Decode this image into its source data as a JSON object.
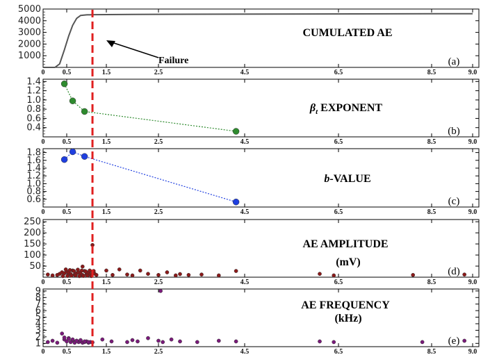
{
  "figure": {
    "failure_label": "Failure",
    "failure_x": 1.15,
    "failure_color": "#e02020"
  },
  "chart_data": [
    {
      "type": "line",
      "title": "CUMULATED AE",
      "panel_letter": "(a)",
      "xlim": [
        0,
        9.0
      ],
      "ylim": [
        0,
        5000
      ],
      "x_ticks": [
        "0",
        "0.5",
        "1.5",
        "2.5",
        "4.5",
        "6.5",
        "8.5",
        "9.0"
      ],
      "y_ticks": [
        "5000",
        "4000",
        "3000",
        "2000",
        "1000"
      ],
      "series": [
        {
          "color": "#555555",
          "x": [
            0,
            0.25,
            0.35,
            0.45,
            0.55,
            0.65,
            0.75,
            0.85,
            1.0,
            1.2,
            2.0,
            4.0,
            6.0,
            9.0
          ],
          "y": [
            0,
            0,
            300,
            1500,
            2700,
            3600,
            4200,
            4450,
            4500,
            4520,
            4540,
            4560,
            4580,
            4600
          ]
        }
      ]
    },
    {
      "type": "scatter",
      "title_symbol": "β",
      "title_subscript": "t",
      "title": "EXPONENT",
      "panel_letter": "(b)",
      "xlim": [
        0,
        9.0
      ],
      "ylim": [
        0.2,
        1.45
      ],
      "x_ticks": [
        "0",
        "0.5",
        "1.5",
        "2.5",
        "4.5",
        "6.5",
        "8.5",
        "9.0"
      ],
      "y_ticks": [
        "1.4",
        "1.2",
        "1.0",
        "0.8",
        "0.6",
        "0.4"
      ],
      "series": [
        {
          "color": "#2e8b2e",
          "x": [
            0.45,
            0.65,
            0.95,
            4.3
          ],
          "y": [
            1.35,
            0.98,
            0.75,
            0.32
          ]
        }
      ]
    },
    {
      "type": "scatter",
      "title_italic": "b",
      "title": "-VALUE",
      "panel_letter": "(c)",
      "xlim": [
        0,
        9.0
      ],
      "ylim": [
        0.4,
        1.9
      ],
      "x_ticks": [
        "0",
        "0.5",
        "1.5",
        "2.5",
        "4.5",
        "6.5",
        "8.5",
        "9.0"
      ],
      "y_ticks": [
        "1.8",
        "1.6",
        "1.4",
        "1.2",
        "1.0",
        "0.8",
        "0.6"
      ],
      "series": [
        {
          "color": "#1f3fe0",
          "x": [
            0.45,
            0.65,
            0.95,
            4.3
          ],
          "y": [
            1.62,
            1.82,
            1.7,
            0.53
          ]
        }
      ]
    },
    {
      "type": "scatter",
      "title": "AE AMPLITUDE",
      "unit": "(mV)",
      "panel_letter": "(d)",
      "xlim": [
        0,
        9.0
      ],
      "ylim": [
        0,
        260
      ],
      "x_ticks": [
        "0",
        "0.5",
        "1.5",
        "2.5",
        "4.5",
        "6.5",
        "8.5",
        "9.0"
      ],
      "y_ticks": [
        "250",
        "200",
        "150",
        "100",
        "50"
      ],
      "series": [
        {
          "color": "#8b1a1a",
          "x": [
            0.1,
            0.2,
            0.3,
            0.35,
            0.4,
            0.45,
            0.5,
            0.55,
            0.6,
            0.65,
            0.7,
            0.75,
            0.8,
            0.85,
            0.9,
            0.95,
            1.0,
            1.05,
            1.1,
            1.15,
            1.2,
            1.25,
            0.42,
            0.52,
            0.62,
            0.72,
            0.82,
            0.92,
            1.02,
            1.12,
            0.48,
            0.58,
            0.68,
            0.78,
            0.88,
            0.98,
            1.08,
            1.18,
            0.9,
            1.15,
            1.5,
            1.62,
            1.75,
            1.9,
            2.0,
            2.15,
            2.3,
            2.5,
            2.7,
            2.9,
            3.0,
            3.2,
            3.5,
            3.9,
            4.3,
            6.1,
            6.4,
            8.1,
            8.9
          ],
          "y": [
            12,
            8,
            10,
            15,
            22,
            18,
            25,
            20,
            14,
            30,
            12,
            18,
            22,
            16,
            10,
            28,
            14,
            20,
            12,
            24,
            16,
            10,
            5,
            6,
            7,
            8,
            5,
            6,
            7,
            5,
            35,
            32,
            28,
            34,
            30,
            26,
            30,
            28,
            48,
            145,
            30,
            10,
            35,
            12,
            8,
            30,
            15,
            10,
            22,
            8,
            14,
            10,
            12,
            8,
            28,
            15,
            8,
            10,
            12
          ]
        }
      ]
    },
    {
      "type": "scatter",
      "title": "AE FREQUENCY",
      "unit": "(kHz)",
      "panel_letter": "(e)",
      "xlim": [
        0,
        9.0
      ],
      "ylim": [
        0.5,
        9.3
      ],
      "x_ticks": [
        "0",
        "0.5",
        "1.5",
        "2.5",
        "4.5",
        "6.5",
        "8.5",
        "9.0"
      ],
      "y_ticks": [
        "9",
        "8",
        "7",
        "6",
        "5",
        "4",
        "3",
        "2",
        "1"
      ],
      "series": [
        {
          "color": "#7a1a7a",
          "x": [
            0.1,
            0.2,
            0.3,
            0.4,
            0.45,
            0.5,
            0.55,
            0.6,
            0.65,
            0.7,
            0.75,
            0.8,
            0.85,
            0.9,
            0.95,
            1.0,
            1.05,
            1.1,
            1.15,
            0.45,
            0.55,
            0.65,
            0.75,
            0.85,
            0.95,
            1.05,
            1.4,
            1.6,
            1.9,
            2.0,
            2.1,
            2.3,
            2.5,
            2.6,
            2.8,
            3.0,
            3.4,
            3.9,
            4.3,
            6.1,
            6.4,
            8.3,
            8.9,
            2.55
          ],
          "y": [
            1.2,
            1.4,
            1.1,
            2.5,
            1.6,
            1.3,
            1.8,
            1.2,
            1.5,
            1.1,
            1.4,
            1.2,
            1.3,
            1.1,
            1.2,
            1.3,
            1.1,
            1.2,
            1.15,
            1.9,
            1.7,
            1.6,
            1.4,
            1.5,
            1.3,
            1.2,
            1.6,
            1.3,
            1.2,
            1.5,
            1.3,
            1.8,
            1.4,
            1.2,
            1.6,
            1.3,
            1.2,
            1.4,
            1.3,
            1.3,
            1.2,
            1.2,
            1.4,
            9.0
          ]
        }
      ]
    }
  ]
}
